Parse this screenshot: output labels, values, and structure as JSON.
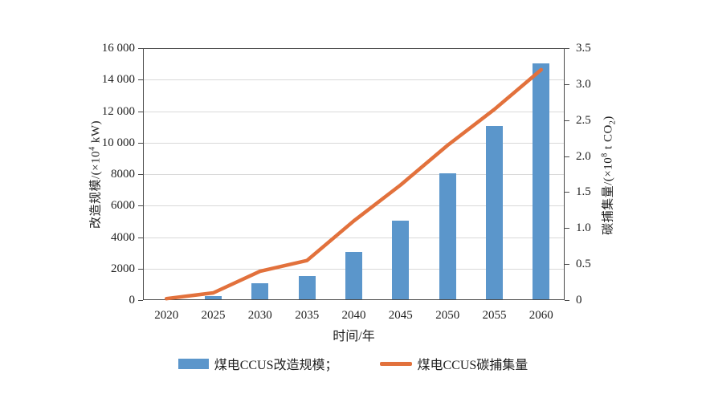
{
  "chart_data": {
    "type": "bar+line",
    "categories": [
      "2020",
      "2025",
      "2030",
      "2035",
      "2040",
      "2045",
      "2050",
      "2055",
      "2060"
    ],
    "series": [
      {
        "name": "煤电CCUS改造规模",
        "type": "bar",
        "axis": "left",
        "color": "#5b96cb",
        "values": [
          0,
          200,
          1000,
          1500,
          3000,
          5000,
          8000,
          11000,
          15000
        ]
      },
      {
        "name": "煤电CCUS碳捕集量",
        "type": "line",
        "axis": "right",
        "color": "#e2713c",
        "values": [
          0.02,
          0.1,
          0.4,
          0.55,
          1.1,
          1.6,
          2.15,
          2.65,
          3.2
        ]
      }
    ],
    "left_axis": {
      "label": "改造规模/(×10⁴ kW)",
      "min": 0,
      "max": 16000,
      "tick_step": 2000,
      "ticks": [
        "0",
        "2000",
        "4000",
        "6000",
        "8000",
        "10 000",
        "12 000",
        "14 000",
        "16 000"
      ]
    },
    "right_axis": {
      "label": "碳捕集量/(×10⁸ t CO₂)",
      "min": 0,
      "max": 3.5,
      "tick_step": 0.5,
      "ticks": [
        "0",
        "0.5",
        "1.0",
        "1.5",
        "2.0",
        "2.5",
        "3.0",
        "3.5"
      ]
    },
    "x_axis": {
      "label": "时间/年"
    },
    "grid": "horizontal",
    "legend_position": "bottom",
    "colors": {
      "grid": "#d9d9d9",
      "axis": "#4a4a4a",
      "text": "#1f1f1f"
    }
  },
  "labels": {
    "left_axis": {
      "prefix": "改造规模/(×10",
      "sup": "4",
      "suffix": " kW)"
    },
    "right_axis": {
      "prefix": "碳捕集量/(×10",
      "sup": "8",
      "mid": " t CO",
      "sub": "2",
      "suffix": ")"
    },
    "x_axis": "时间/年",
    "legend_bar": "煤电CCUS改造规模；",
    "legend_line": "煤电CCUS碳捕集量"
  }
}
